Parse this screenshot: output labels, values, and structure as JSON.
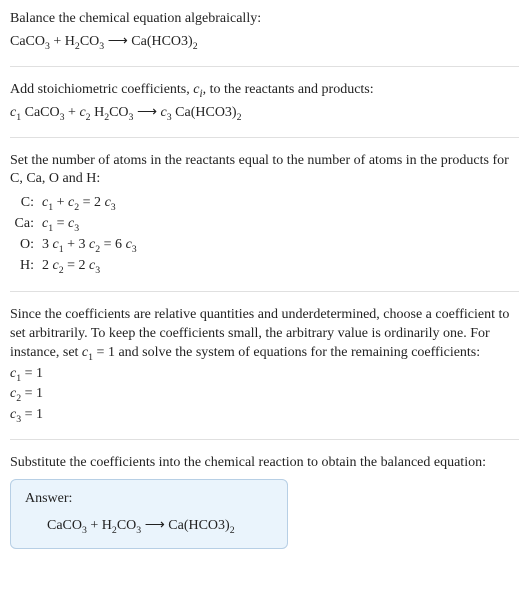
{
  "section1": {
    "title_line": "Balance the chemical equation algebraically:"
  },
  "section2": {
    "intro": "Add stoichiometric coefficients, ",
    "intro_tail": ", to the reactants and products:"
  },
  "section3": {
    "text": "Set the number of atoms in the reactants equal to the number of atoms in the products for C, Ca, O and H:",
    "rows": {
      "c": {
        "label": "C:"
      },
      "ca": {
        "label": "Ca:"
      },
      "o": {
        "label": "O:"
      },
      "h": {
        "label": "H:"
      }
    }
  },
  "section4": {
    "text_a": "Since the coefficients are relative quantities and underdetermined, choose a coefficient to set arbitrarily. To keep the coefficients small, the arbitrary value is ordinarily one. For instance, set ",
    "text_b": " and solve the system of equations for the remaining coefficients:",
    "c1_val": "1",
    "c2_val": "1",
    "c3_val": "1"
  },
  "section5": {
    "text": "Substitute the coefficients into the chemical reaction to obtain the balanced equation:",
    "answer_label": "Answer:"
  }
}
